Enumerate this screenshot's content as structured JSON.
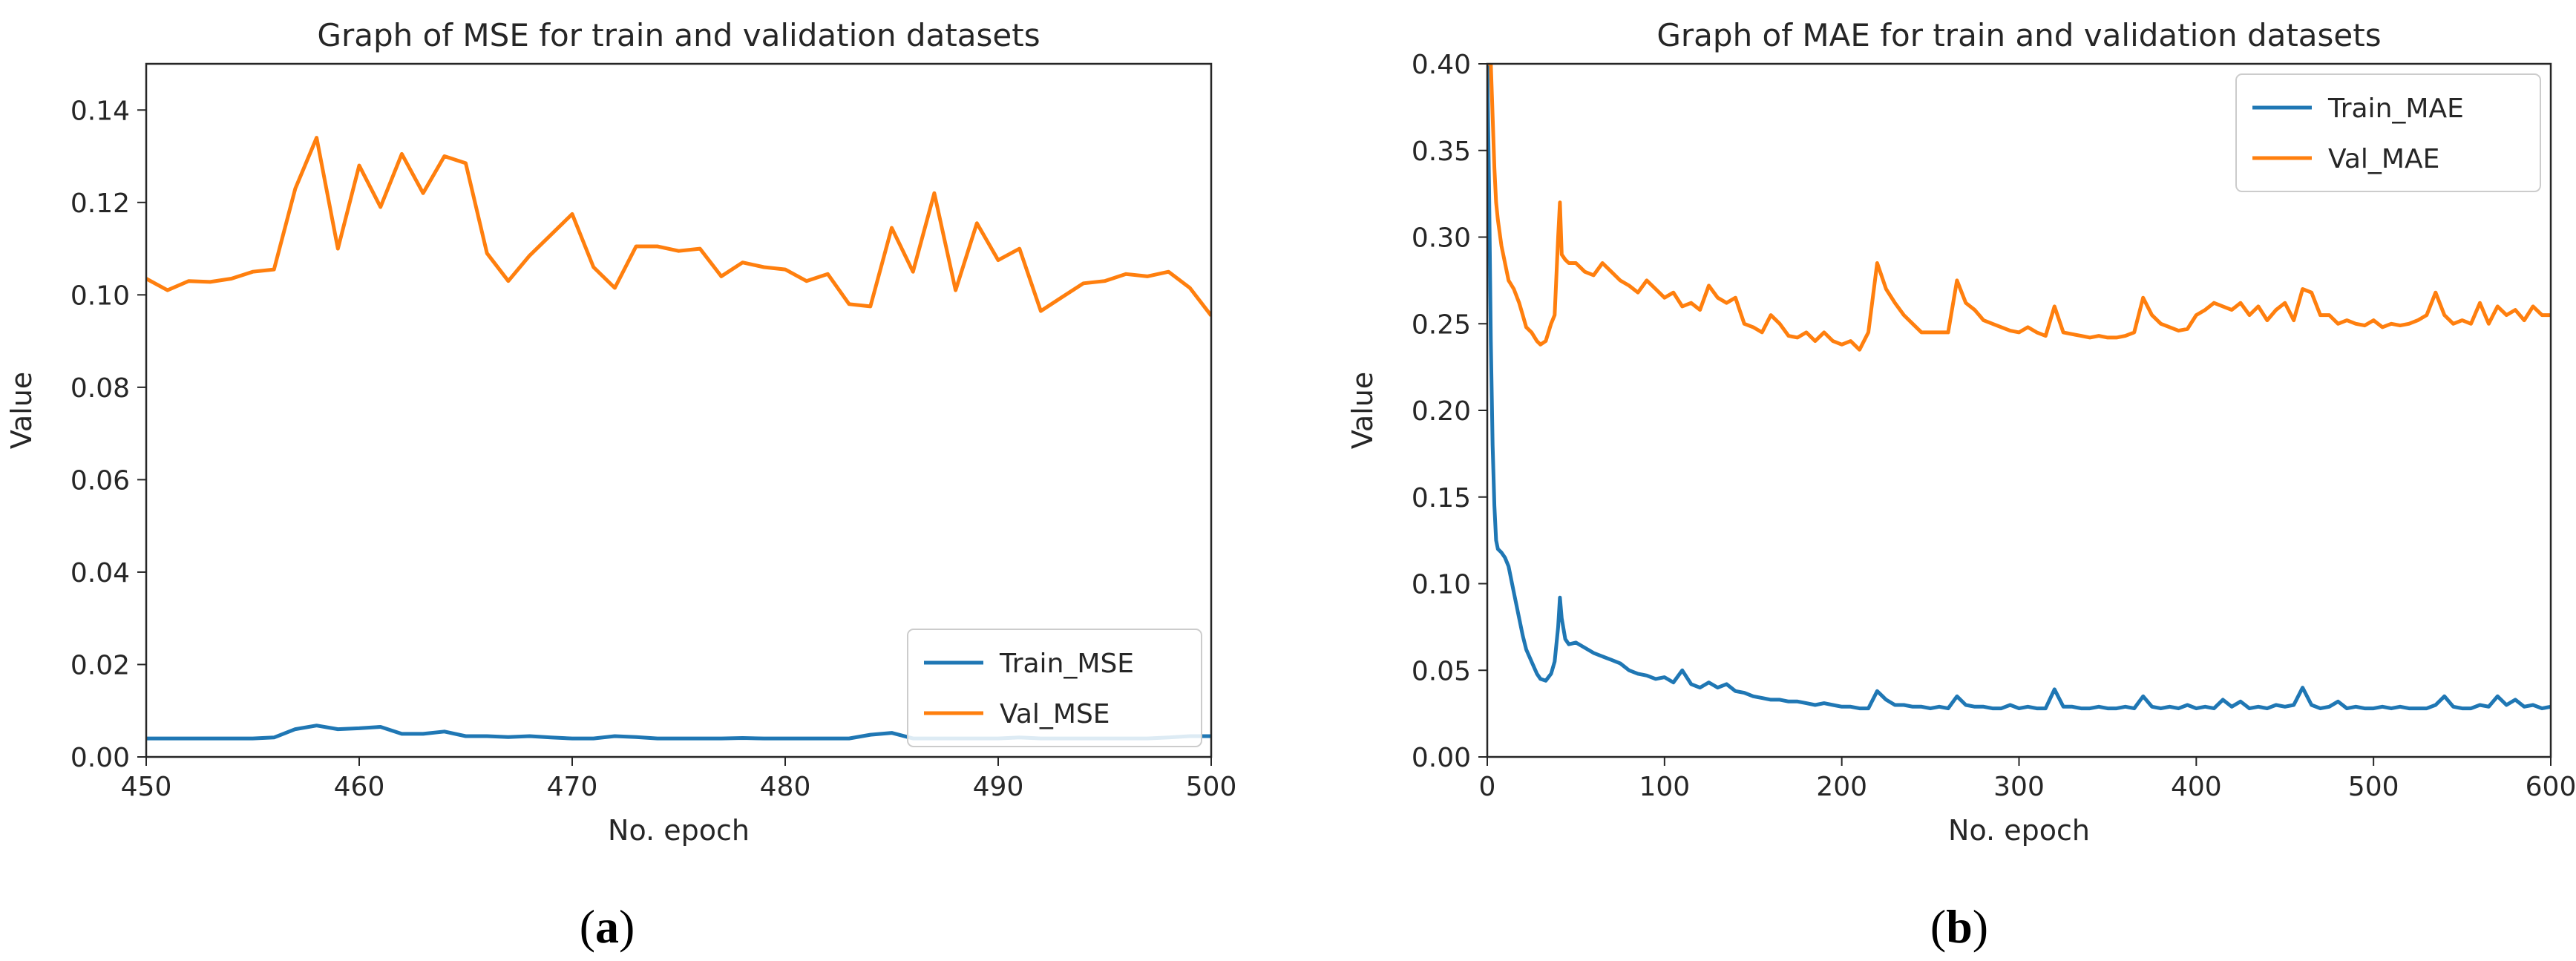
{
  "figure": {
    "captions": [
      "a",
      "b"
    ]
  },
  "chart_data": [
    {
      "type": "line",
      "title": "Graph of MSE for train and validation datasets",
      "xlabel": "No. epoch",
      "ylabel": "Value",
      "xlim": [
        450,
        500
      ],
      "ylim": [
        0,
        0.15
      ],
      "xticks": [
        450,
        460,
        470,
        480,
        490,
        500
      ],
      "xtick_labels": [
        "450",
        "460",
        "470",
        "480",
        "490",
        "500"
      ],
      "yticks": [
        0,
        0.02,
        0.04,
        0.06,
        0.08,
        0.1,
        0.12,
        0.14
      ],
      "ytick_labels": [
        "0.00",
        "0.02",
        "0.04",
        "0.06",
        "0.08",
        "0.10",
        "0.12",
        "0.14"
      ],
      "legend": "lower-right",
      "x": [
        450,
        451,
        452,
        453,
        454,
        455,
        456,
        457,
        458,
        459,
        460,
        461,
        462,
        463,
        464,
        465,
        466,
        467,
        468,
        469,
        470,
        471,
        472,
        473,
        474,
        475,
        476,
        477,
        478,
        479,
        480,
        481,
        482,
        483,
        484,
        485,
        486,
        487,
        488,
        489,
        490,
        491,
        492,
        493,
        494,
        495,
        496,
        497,
        498,
        499,
        500
      ],
      "series": [
        {
          "name": "Train_MSE",
          "color": "#1f77b4",
          "values": [
            0.004,
            0.004,
            0.004,
            0.004,
            0.004,
            0.004,
            0.0042,
            0.006,
            0.0068,
            0.006,
            0.0062,
            0.0065,
            0.005,
            0.005,
            0.0055,
            0.0045,
            0.0045,
            0.0043,
            0.0045,
            0.0042,
            0.004,
            0.004,
            0.0045,
            0.0043,
            0.004,
            0.004,
            0.004,
            0.004,
            0.0041,
            0.004,
            0.004,
            0.004,
            0.004,
            0.004,
            0.0048,
            0.0052,
            0.004,
            0.004,
            0.004,
            0.004,
            0.004,
            0.0042,
            0.004,
            0.004,
            0.004,
            0.004,
            0.004,
            0.004,
            0.0042,
            0.0045,
            0.0045
          ]
        },
        {
          "name": "Val_MSE",
          "color": "#ff7f0e",
          "values": [
            0.1035,
            0.101,
            0.103,
            0.1028,
            0.1035,
            0.105,
            0.1055,
            0.123,
            0.134,
            0.11,
            0.128,
            0.119,
            0.1305,
            0.122,
            0.13,
            0.1285,
            0.109,
            0.103,
            0.1085,
            0.113,
            0.1175,
            0.106,
            0.1015,
            0.1105,
            0.1105,
            0.1095,
            0.11,
            0.104,
            0.107,
            0.106,
            0.1055,
            0.103,
            0.1045,
            0.098,
            0.0975,
            0.1145,
            0.105,
            0.122,
            0.101,
            0.1155,
            0.1075,
            0.11,
            0.0965,
            0.0995,
            0.1025,
            0.103,
            0.1045,
            0.104,
            0.105,
            0.1015,
            0.0955
          ]
        }
      ]
    },
    {
      "type": "line",
      "title": "Graph of MAE for train and validation datasets",
      "xlabel": "No. epoch",
      "ylabel": "Value",
      "xlim": [
        0,
        600
      ],
      "ylim": [
        0,
        0.4
      ],
      "xticks": [
        0,
        100,
        200,
        300,
        400,
        500,
        600
      ],
      "xtick_labels": [
        "0",
        "100",
        "200",
        "300",
        "400",
        "500",
        "600"
      ],
      "yticks": [
        0,
        0.05,
        0.1,
        0.15,
        0.2,
        0.25,
        0.3,
        0.35,
        0.4
      ],
      "ytick_labels": [
        "0.00",
        "0.05",
        "0.10",
        "0.15",
        "0.20",
        "0.25",
        "0.30",
        "0.35",
        "0.40"
      ],
      "legend": "top-right",
      "x": [
        0,
        1,
        2,
        3,
        4,
        5,
        6,
        8,
        10,
        12,
        15,
        18,
        20,
        22,
        25,
        28,
        30,
        33,
        36,
        38,
        40,
        41,
        42,
        44,
        46,
        50,
        55,
        60,
        65,
        70,
        75,
        80,
        85,
        90,
        95,
        100,
        105,
        110,
        115,
        120,
        125,
        130,
        135,
        140,
        145,
        150,
        155,
        160,
        165,
        170,
        175,
        180,
        185,
        190,
        195,
        200,
        205,
        210,
        215,
        220,
        225,
        230,
        235,
        240,
        245,
        250,
        255,
        260,
        265,
        270,
        275,
        280,
        285,
        290,
        295,
        300,
        305,
        310,
        315,
        320,
        325,
        330,
        335,
        340,
        345,
        350,
        355,
        360,
        365,
        370,
        375,
        380,
        385,
        390,
        395,
        400,
        405,
        410,
        415,
        420,
        425,
        430,
        435,
        440,
        445,
        450,
        455,
        460,
        465,
        470,
        475,
        480,
        485,
        490,
        495,
        500,
        505,
        510,
        515,
        520,
        525,
        530,
        535,
        540,
        545,
        550,
        555,
        560,
        565,
        570,
        575,
        580,
        585,
        590,
        595,
        600
      ],
      "series": [
        {
          "name": "Train_MAE",
          "color": "#1f77b4",
          "values": [
            0.4,
            0.33,
            0.24,
            0.18,
            0.145,
            0.125,
            0.12,
            0.118,
            0.115,
            0.11,
            0.095,
            0.08,
            0.07,
            0.062,
            0.055,
            0.048,
            0.045,
            0.044,
            0.048,
            0.055,
            0.075,
            0.092,
            0.08,
            0.068,
            0.065,
            0.066,
            0.063,
            0.06,
            0.058,
            0.056,
            0.054,
            0.05,
            0.048,
            0.047,
            0.045,
            0.046,
            0.043,
            0.05,
            0.042,
            0.04,
            0.043,
            0.04,
            0.042,
            0.038,
            0.037,
            0.035,
            0.034,
            0.033,
            0.033,
            0.032,
            0.032,
            0.031,
            0.03,
            0.031,
            0.03,
            0.029,
            0.029,
            0.028,
            0.028,
            0.038,
            0.033,
            0.03,
            0.03,
            0.029,
            0.029,
            0.028,
            0.029,
            0.028,
            0.035,
            0.03,
            0.029,
            0.029,
            0.028,
            0.028,
            0.03,
            0.028,
            0.029,
            0.028,
            0.028,
            0.039,
            0.029,
            0.029,
            0.028,
            0.028,
            0.029,
            0.028,
            0.028,
            0.029,
            0.028,
            0.035,
            0.029,
            0.028,
            0.029,
            0.028,
            0.03,
            0.028,
            0.029,
            0.028,
            0.033,
            0.029,
            0.032,
            0.028,
            0.029,
            0.028,
            0.03,
            0.029,
            0.03,
            0.04,
            0.03,
            0.028,
            0.029,
            0.032,
            0.028,
            0.029,
            0.028,
            0.028,
            0.029,
            0.028,
            0.029,
            0.028,
            0.028,
            0.028,
            0.03,
            0.035,
            0.029,
            0.028,
            0.028,
            0.03,
            0.029,
            0.035,
            0.03,
            0.033,
            0.029,
            0.03,
            0.028,
            0.029
          ]
        },
        {
          "name": "Val_MAE",
          "color": "#ff7f0e",
          "values": [
            0.4,
            0.4,
            0.4,
            0.37,
            0.34,
            0.32,
            0.31,
            0.295,
            0.285,
            0.275,
            0.27,
            0.262,
            0.255,
            0.248,
            0.245,
            0.24,
            0.238,
            0.24,
            0.25,
            0.255,
            0.3,
            0.32,
            0.29,
            0.287,
            0.285,
            0.285,
            0.28,
            0.278,
            0.285,
            0.28,
            0.275,
            0.272,
            0.268,
            0.275,
            0.27,
            0.265,
            0.268,
            0.26,
            0.262,
            0.258,
            0.272,
            0.265,
            0.262,
            0.265,
            0.25,
            0.248,
            0.245,
            0.255,
            0.25,
            0.243,
            0.242,
            0.245,
            0.24,
            0.245,
            0.24,
            0.238,
            0.24,
            0.235,
            0.245,
            0.285,
            0.27,
            0.262,
            0.255,
            0.25,
            0.245,
            0.245,
            0.245,
            0.245,
            0.275,
            0.262,
            0.258,
            0.252,
            0.25,
            0.248,
            0.246,
            0.245,
            0.248,
            0.245,
            0.243,
            0.26,
            0.245,
            0.244,
            0.243,
            0.242,
            0.243,
            0.242,
            0.242,
            0.243,
            0.245,
            0.265,
            0.255,
            0.25,
            0.248,
            0.246,
            0.247,
            0.255,
            0.258,
            0.262,
            0.26,
            0.258,
            0.262,
            0.255,
            0.26,
            0.252,
            0.258,
            0.262,
            0.252,
            0.27,
            0.268,
            0.255,
            0.255,
            0.25,
            0.252,
            0.25,
            0.249,
            0.252,
            0.248,
            0.25,
            0.249,
            0.25,
            0.252,
            0.255,
            0.268,
            0.255,
            0.25,
            0.252,
            0.25,
            0.262,
            0.25,
            0.26,
            0.255,
            0.258,
            0.252,
            0.26,
            0.255,
            0.255
          ]
        }
      ]
    }
  ]
}
